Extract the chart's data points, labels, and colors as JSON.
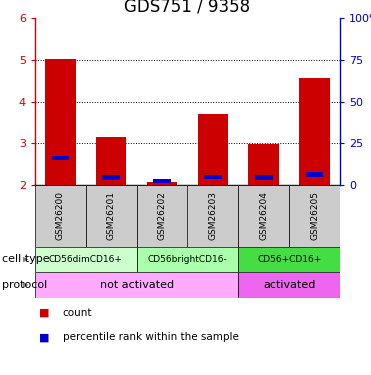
{
  "title": "GDS751 / 9358",
  "samples": [
    "GSM26200",
    "GSM26201",
    "GSM26202",
    "GSM26203",
    "GSM26204",
    "GSM26205"
  ],
  "red_values": [
    5.02,
    3.15,
    2.08,
    3.7,
    2.98,
    4.57
  ],
  "blue_values": [
    2.65,
    2.18,
    2.1,
    2.2,
    2.18,
    2.25
  ],
  "ymin": 2.0,
  "ymax": 6.0,
  "yticks_left": [
    2,
    3,
    4,
    5,
    6
  ],
  "yticks_right": [
    0,
    25,
    50,
    75,
    100
  ],
  "yticks_right_labels": [
    "0",
    "25",
    "50",
    "75",
    "100%"
  ],
  "cell_type_row": {
    "groups": [
      {
        "label": "CD56dimCD16+",
        "start": 0,
        "end": 2,
        "color": "#ccffcc"
      },
      {
        "label": "CD56brightCD16-",
        "start": 2,
        "end": 4,
        "color": "#aaffaa"
      },
      {
        "label": "CD56+CD16+",
        "start": 4,
        "end": 6,
        "color": "#44dd44"
      }
    ]
  },
  "protocol_row": {
    "groups": [
      {
        "label": "not activated",
        "start": 0,
        "end": 4,
        "color": "#ffaaff"
      },
      {
        "label": "activated",
        "start": 4,
        "end": 6,
        "color": "#ee66ee"
      }
    ]
  },
  "row_labels": [
    "cell type",
    "protocol"
  ],
  "legend_items": [
    {
      "color": "#cc0000",
      "label": "count"
    },
    {
      "color": "#0000cc",
      "label": "percentile rank within the sample"
    }
  ],
  "bar_color_red": "#cc0000",
  "bar_color_blue": "#0000cc",
  "bar_width": 0.6,
  "blue_bar_width": 0.35,
  "blue_bar_height": 0.1,
  "left_axis_color": "#cc0000",
  "right_axis_color": "#0000cc",
  "sample_bg_color": "#cccccc",
  "title_fontsize": 12,
  "tick_fontsize": 8,
  "sample_fontsize": 6.5,
  "cell_fontsize": 6.5,
  "proto_fontsize": 8,
  "legend_fontsize": 7.5,
  "label_fontsize": 8
}
